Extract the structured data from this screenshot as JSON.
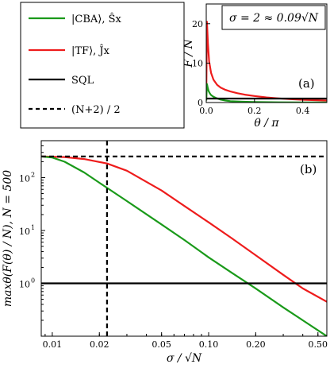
{
  "legend": {
    "entries": [
      {
        "label": "|CBA⟩, Ŝx",
        "color": "#1a9a1a",
        "style": "solid"
      },
      {
        "label": "|TF⟩,   Ĵx",
        "color": "#ee1c1c",
        "style": "solid"
      },
      {
        "label": "SQL",
        "color": "#000000",
        "style": "solid"
      },
      {
        "label": "(N+2) / 2",
        "color": "#000000",
        "style": "dashed"
      }
    ]
  },
  "chart_data": [
    {
      "id": "a",
      "type": "line",
      "panel_label": "(a)",
      "annotation": "σ = 2 ≈ 0.09√N",
      "xlabel": "θ / π",
      "ylabel": "F / N",
      "xlim": [
        0,
        0.5
      ],
      "ylim": [
        0,
        25
      ],
      "xticks": [
        0.0,
        0.2,
        0.4
      ],
      "xtick_labels": [
        "0.0",
        "0.2",
        "0.4"
      ],
      "yticks": [
        0,
        10,
        20
      ],
      "ytick_labels": [
        "0",
        "10",
        "20"
      ],
      "series": [
        {
          "key": "TF",
          "color": "#ee1c1c",
          "x": [
            0.0,
            0.003,
            0.007,
            0.012,
            0.02,
            0.03,
            0.045,
            0.06,
            0.08,
            0.1,
            0.13,
            0.16,
            0.2,
            0.25,
            0.3,
            0.35,
            0.4,
            0.45,
            0.5
          ],
          "y": [
            0.5,
            20.5,
            15.0,
            10.5,
            7.5,
            5.8,
            4.5,
            3.8,
            3.2,
            2.8,
            2.35,
            2.0,
            1.65,
            1.3,
            1.05,
            0.85,
            0.7,
            0.6,
            0.5
          ]
        },
        {
          "key": "CBA",
          "color": "#1a9a1a",
          "x": [
            0.0,
            0.003,
            0.006,
            0.01,
            0.015,
            0.02,
            0.03,
            0.04,
            0.06,
            0.08,
            0.1,
            0.15,
            0.2,
            0.3,
            0.4,
            0.5
          ],
          "y": [
            0.5,
            4.7,
            3.8,
            2.9,
            2.3,
            1.9,
            1.45,
            1.15,
            0.75,
            0.5,
            0.35,
            0.2,
            0.12,
            0.06,
            0.03,
            0.02
          ]
        },
        {
          "key": "SQL",
          "color": "#000000",
          "x": [
            0.0,
            0.5
          ],
          "y": [
            1,
            1
          ]
        }
      ]
    },
    {
      "id": "b",
      "type": "line",
      "panel_label": "(b)",
      "xlabel": "σ / √N",
      "ylabel": "maxθ(F(θ) / N), N = 500",
      "xscale": "log",
      "yscale": "log",
      "xlim": [
        0.0085,
        0.57
      ],
      "ylim": [
        0.1,
        500
      ],
      "xticks": [
        0.01,
        0.02,
        0.05,
        0.1,
        0.2,
        0.5
      ],
      "xtick_labels": [
        "0.01",
        "0.02",
        "0.05",
        "0.10",
        "0.20",
        "0.50"
      ],
      "yticks": [
        1,
        10,
        100
      ],
      "ytick_bases": [
        "10",
        "10",
        "10"
      ],
      "ytick_exps": [
        "0",
        "1",
        "2"
      ],
      "series": [
        {
          "key": "TF",
          "color": "#ee1c1c",
          "x": [
            0.0085,
            0.012,
            0.016,
            0.0224,
            0.03,
            0.05,
            0.07,
            0.1,
            0.14,
            0.2,
            0.3,
            0.4,
            0.57
          ],
          "y": [
            251,
            245,
            225,
            185,
            135,
            57,
            29,
            14.3,
            7.2,
            3.4,
            1.45,
            0.8,
            0.45
          ]
        },
        {
          "key": "CBA",
          "color": "#1a9a1a",
          "x": [
            0.0085,
            0.01,
            0.012,
            0.016,
            0.02,
            0.03,
            0.05,
            0.07,
            0.1,
            0.14,
            0.2,
            0.3,
            0.4,
            0.57
          ],
          "y": [
            251,
            240,
            200,
            125,
            80,
            36,
            13,
            6.6,
            3.1,
            1.6,
            0.8,
            0.35,
            0.2,
            0.1
          ]
        },
        {
          "key": "SQL",
          "color": "#000000",
          "x": [
            0.0085,
            0.57
          ],
          "y": [
            1,
            1
          ]
        },
        {
          "key": "bound",
          "color": "#000000",
          "dashed": true,
          "x": [
            0.0085,
            0.57
          ],
          "y": [
            251,
            251
          ]
        },
        {
          "key": "marker",
          "color": "#000000",
          "dashed": true,
          "vertical": true,
          "x": [
            0.0224,
            0.0224
          ],
          "y": [
            0.1,
            500
          ]
        }
      ]
    }
  ]
}
